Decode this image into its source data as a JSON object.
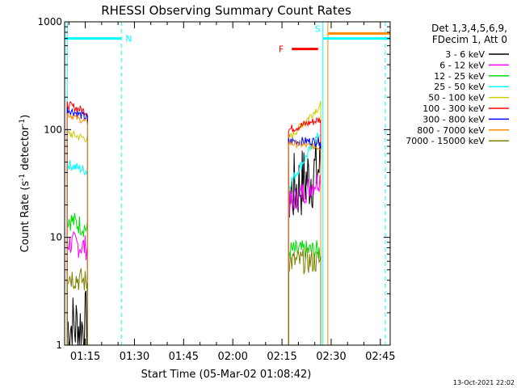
{
  "chart_data": {
    "type": "line",
    "title": "RHESSI Observing Summary Count Rates",
    "xlabel": "Start Time (05-Mar-02 01:08:42)",
    "ylabel": "Count Rate (s",
    "ylabel_sup1": "-1",
    "ylabel_mid": " detector",
    "ylabel_sup2": "-1",
    "ylabel_end": ")",
    "y_scale": "log",
    "ylim": [
      1,
      1000
    ],
    "xlim_minutes": [
      68.7,
      168.0
    ],
    "x_ticks": [
      {
        "m": 75,
        "label": "01:15"
      },
      {
        "m": 90,
        "label": "01:30"
      },
      {
        "m": 105,
        "label": "01:45"
      },
      {
        "m": 120,
        "label": "02:00"
      },
      {
        "m": 135,
        "label": "02:15"
      },
      {
        "m": 150,
        "label": "02:30"
      },
      {
        "m": 165,
        "label": "02:45"
      }
    ],
    "y_ticks": [
      {
        "v": 1,
        "label": "1"
      },
      {
        "v": 10,
        "label": "10"
      },
      {
        "v": 100,
        "label": "100"
      },
      {
        "v": 1000,
        "label": "1000"
      }
    ],
    "legend": {
      "header1": "Det 1,3,4,5,6,9,",
      "header2": "FDecim 1, Att 0",
      "placement": "right-outside"
    },
    "series": [
      {
        "name": "3 - 6 keV",
        "color": "#000000",
        "seg1": [
          1.5,
          1.5
        ],
        "seg2": [
          25,
          45
        ],
        "noise": 0.35
      },
      {
        "name": "6 - 12 keV",
        "color": "#ff00ff",
        "seg1": [
          9,
          8
        ],
        "seg2": [
          20,
          36
        ],
        "noise": 0.12
      },
      {
        "name": "12 - 25 keV",
        "color": "#00dd00",
        "seg1": [
          15,
          12
        ],
        "seg2": [
          7.5,
          7.5
        ],
        "noise": 0.1
      },
      {
        "name": "25 - 50 keV",
        "color": "#00ffff",
        "seg1": [
          48,
          41
        ],
        "seg2": [
          30,
          95
        ],
        "noise": 0.05
      },
      {
        "name": "50 - 100 keV",
        "color": "#cccc00",
        "seg1": [
          92,
          82
        ],
        "seg2": [
          82,
          170
        ],
        "noise": 0.04
      },
      {
        "name": "100 - 300 keV",
        "color": "#ff0000",
        "seg1": [
          170,
          145
        ],
        "seg2": [
          100,
          125
        ],
        "noise": 0.04
      },
      {
        "name": "300 - 800 keV",
        "color": "#0000ff",
        "seg1": [
          155,
          128
        ],
        "seg2": [
          78,
          78
        ],
        "noise": 0.04
      },
      {
        "name": "800 - 7000 keV",
        "color": "#ff8c00",
        "seg1": [
          140,
          115
        ],
        "seg2": [
          75,
          68
        ],
        "noise": 0.03
      },
      {
        "name": "7000 - 15000 keV",
        "color": "#808000",
        "seg1": [
          4.5,
          3.8
        ],
        "seg2": [
          6,
          6
        ],
        "noise": 0.12
      }
    ],
    "segments_minutes": {
      "seg1": [
        69.5,
        75.7
      ],
      "seg2": [
        137.0,
        146.8
      ]
    },
    "flags": [
      {
        "label": "N",
        "color": "#00ffff",
        "value": 700,
        "start_m": 68.7,
        "end_m": 86.0
      },
      {
        "label": "S",
        "color": "#00ffff",
        "value": 700,
        "start_m": 147.5,
        "end_m": 168.0
      },
      {
        "label": "F",
        "color": "#ff0000",
        "value": 560,
        "start_m": 138.0,
        "end_m": 146.0
      },
      {
        "label": "",
        "color": "#ff8c00",
        "value": 780,
        "start_m": 149.0,
        "end_m": 168.0
      }
    ],
    "vlines": [
      {
        "m": 69.5,
        "color": "#00ffff",
        "dashed": false
      },
      {
        "m": 86.0,
        "color": "#00ffff",
        "dashed": true
      },
      {
        "m": 147.5,
        "color": "#00ffff",
        "dashed": false
      },
      {
        "m": 149.0,
        "color": "#ff8c00",
        "dashed": false
      },
      {
        "m": 166.5,
        "color": "#00ffff",
        "dashed": true
      }
    ],
    "timestamp": "13-Oct-2021 22:02"
  }
}
